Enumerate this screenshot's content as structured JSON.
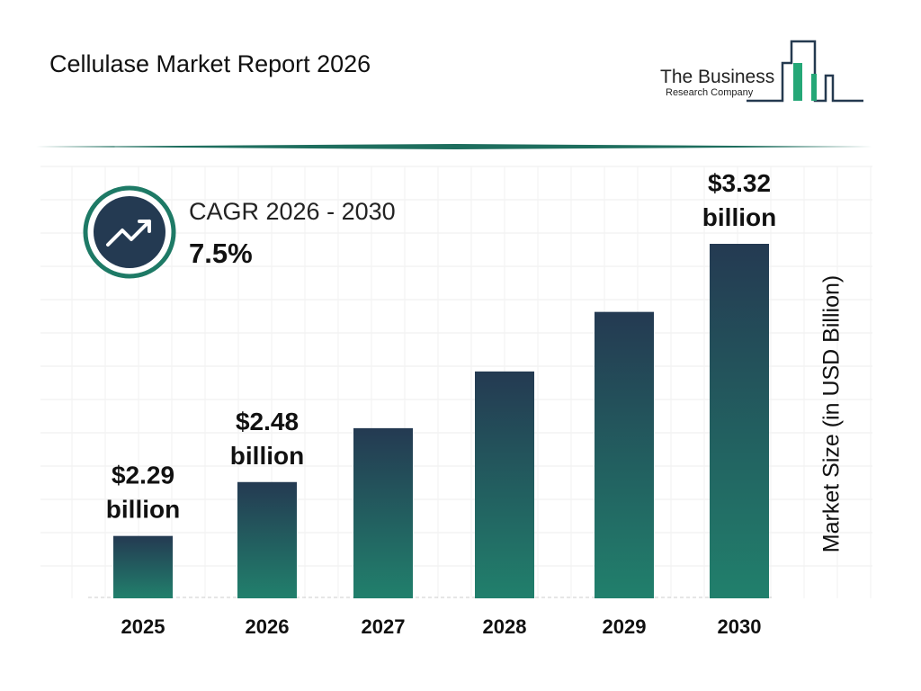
{
  "header": {
    "title": "Cellulase Market Report 2026"
  },
  "logo": {
    "line1": "The Business",
    "line2": "Research Company"
  },
  "cagr": {
    "label": "CAGR 2026 - 2030",
    "value": "7.5%",
    "icon": "trend-up-arrow-icon"
  },
  "colors": {
    "bar_top": "#243a52",
    "bar_bottom": "#21806c",
    "accent": "#1e7a66"
  },
  "chart_data": {
    "type": "bar",
    "categories": [
      "2025",
      "2026",
      "2027",
      "2028",
      "2029",
      "2030"
    ],
    "values": [
      2.29,
      2.48,
      2.67,
      2.87,
      3.08,
      3.32
    ],
    "data_labels": [
      [
        "$2.29",
        "billion"
      ],
      [
        "$2.48",
        "billion"
      ],
      null,
      null,
      null,
      [
        "$3.32",
        "billion"
      ]
    ],
    "ylabel": "Market Size (in USD Billion)",
    "ylim": [
      2.07,
      3.32
    ],
    "grid": true
  }
}
